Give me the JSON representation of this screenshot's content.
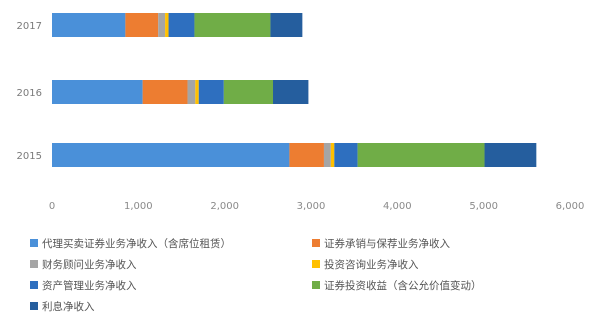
{
  "chart_data": {
    "type": "bar",
    "orientation": "horizontal",
    "stacked": true,
    "title": "",
    "xlabel": "",
    "ylabel": "",
    "xlim": [
      0,
      6000
    ],
    "x_ticks": [
      0,
      1000,
      2000,
      3000,
      4000,
      5000,
      6000
    ],
    "x_tick_labels": [
      "0",
      "1,000",
      "2,000",
      "3,000",
      "4,000",
      "5,000",
      "6,000"
    ],
    "grid": false,
    "legend_position": "bottom",
    "categories": [
      "2017",
      "2016",
      "2015"
    ],
    "series": [
      {
        "name": "代理买卖证券业务净收入（含席位租赁）",
        "color": "#4a90d9",
        "values": [
          850,
          1050,
          2750
        ]
      },
      {
        "name": "证券承销与保荐业务净收入",
        "color": "#ed7d31",
        "values": [
          380,
          520,
          400
        ]
      },
      {
        "name": "财务顾问业务净收入",
        "color": "#a5a5a5",
        "values": [
          80,
          90,
          80
        ]
      },
      {
        "name": "投资咨询业务净收入",
        "color": "#ffc000",
        "values": [
          40,
          40,
          40
        ]
      },
      {
        "name": "资产管理业务净收入",
        "color": "#2e6fbf",
        "values": [
          300,
          290,
          270
        ]
      },
      {
        "name": "证券投资收益（含公允价值变动）",
        "color": "#70ad47",
        "values": [
          880,
          570,
          1470
        ]
      },
      {
        "name": "利息净收入",
        "color": "#255e9e",
        "values": [
          370,
          410,
          600
        ]
      }
    ]
  }
}
